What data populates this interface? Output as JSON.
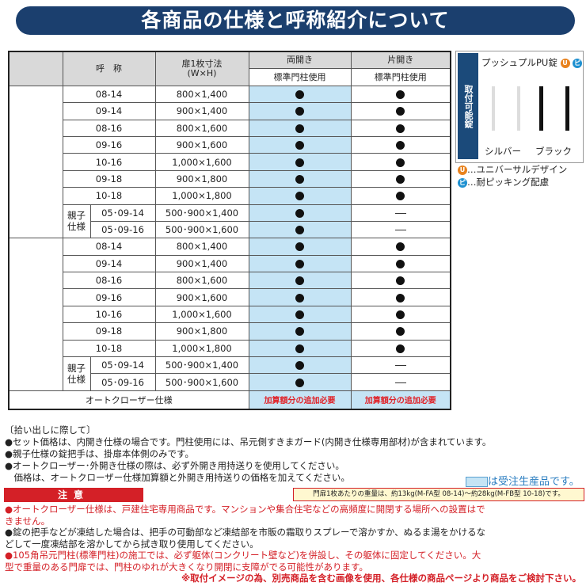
{
  "title": "各商品の仕様と呼称紹介について",
  "table": {
    "h_name": "呼　称",
    "h_size": "扉1枚寸法\n(W×H)",
    "h_double": "両開き",
    "h_single": "片開き",
    "h_std": "標準門柱使用",
    "oyako": "親子\n仕様",
    "groups": [
      {
        "rows": [
          [
            "08-14",
            "800×1,400"
          ],
          [
            "09-14",
            "900×1,400"
          ],
          [
            "08-16",
            "800×1,600"
          ],
          [
            "09-16",
            "900×1,600"
          ],
          [
            "10-16",
            "1,000×1,600"
          ],
          [
            "09-18",
            "900×1,800"
          ],
          [
            "10-18",
            "1,000×1,800"
          ]
        ],
        "oyako_rows": [
          [
            "05･09-14",
            "500･900×1,400"
          ],
          [
            "05･09-16",
            "500･900×1,600"
          ]
        ]
      },
      {
        "rows": [
          [
            "08-14",
            "800×1,400"
          ],
          [
            "09-14",
            "900×1,400"
          ],
          [
            "08-16",
            "800×1,600"
          ],
          [
            "09-16",
            "900×1,600"
          ],
          [
            "10-16",
            "1,000×1,600"
          ],
          [
            "09-18",
            "900×1,800"
          ],
          [
            "10-18",
            "1,000×1,800"
          ]
        ],
        "oyako_rows": [
          [
            "05･09-14",
            "500･900×1,400"
          ],
          [
            "05･09-16",
            "500･900×1,600"
          ]
        ]
      }
    ],
    "auto_label": "オートクローザー仕様",
    "auto_val": "加算額分の追加必要"
  },
  "side": {
    "vertical": "取付可能錠",
    "lock": "プッシュプルPU錠",
    "silver": "シルバー",
    "black": "ブラック",
    "u": "U",
    "hi": "ピ",
    "u_text": "…ユニバーサルデザイン",
    "hi_text": "…耐ピッキング配慮",
    "u_color": "#e8821e",
    "hi_color": "#1e90d0"
  },
  "notes": [
    "〔拾い出しに際して〕",
    "●セット価格は、内開き仕様の場合です。門柱使用には、吊元側すきまガード(内開き仕様専用部材)が含まれています。",
    "●親子仕様の錠把手は、掛扉本体側のみです。",
    "●オートクローザー･外開き仕様の際は、必ず外開き用持送りを使用してください。",
    "　価格は、オートクローザー仕様加算額と外開き用持送りの価格を加えてください。"
  ],
  "order_note": "は受注生産品です。",
  "weight_note": "門扉1枚あたりの重量は、約13kg(M-FA型 08-14)～約28kg(M-FB型 10-18)です。",
  "caution": "注意",
  "cautions": [
    {
      "text": "●オートクローザー仕様は、戸建住宅専用商品です。マンションや集合住宅などの高頻度に開閉する場所への設置はできません。",
      "red": true
    },
    {
      "text": "●錠の把手などが凍結した場合は、把手の可動部など凍結部を市販の霜取りスプレーで溶かすか、ぬるま湯をかけるなどして一度凍結部を溶かしてから拭き取り使用してください。",
      "red": false
    },
    {
      "text": "●105角吊元門柱(標準門柱)の施工では、必ず躯体(コンクリート壁など)を併設し、その躯体に固定してください。大型で重量のある門扉では、門柱のゆれが大きくなり開閉に支障がでる可能性があります。",
      "red": true
    }
  ],
  "footer": "※取付イメージの為、別売商品を含む画像を使用、各仕様の商品ページより商品をご検討下さい。"
}
